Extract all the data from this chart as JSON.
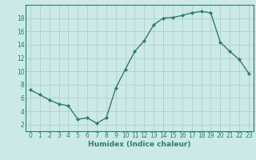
{
  "x": [
    0,
    1,
    2,
    3,
    4,
    5,
    6,
    7,
    8,
    9,
    10,
    11,
    12,
    13,
    14,
    15,
    16,
    17,
    18,
    19,
    20,
    21,
    22,
    23
  ],
  "y": [
    7.2,
    6.5,
    5.7,
    5.1,
    4.8,
    2.8,
    3.0,
    2.2,
    3.0,
    7.5,
    10.3,
    13.0,
    14.6,
    17.0,
    18.0,
    18.1,
    18.4,
    18.8,
    19.0,
    18.8,
    14.4,
    13.0,
    11.8,
    9.7
  ],
  "line_color": "#2d7d6e",
  "marker": "D",
  "marker_size": 2.0,
  "bg_color": "#cce9e9",
  "grid_color": "#b0cece",
  "axis_color": "#2d7d6e",
  "xlabel": "Humidex (Indice chaleur)",
  "xlim": [
    -0.5,
    23.5
  ],
  "ylim": [
    1.0,
    20.0
  ],
  "yticks": [
    2,
    4,
    6,
    8,
    10,
    12,
    14,
    16,
    18
  ],
  "xticks": [
    0,
    1,
    2,
    3,
    4,
    5,
    6,
    7,
    8,
    9,
    10,
    11,
    12,
    13,
    14,
    15,
    16,
    17,
    18,
    19,
    20,
    21,
    22,
    23
  ],
  "xlabel_fontsize": 6.5,
  "tick_fontsize": 5.5,
  "linewidth": 1.0
}
